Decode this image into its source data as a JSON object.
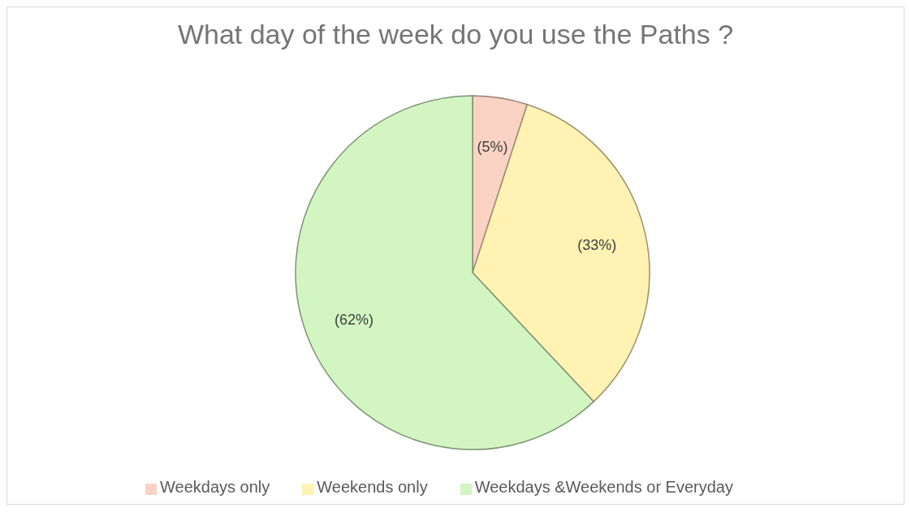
{
  "chart_data": {
    "type": "pie",
    "title": "What day of the week do you use the Paths ?",
    "categories": [
      "Weekdays only",
      "Weekends only",
      "Weekdays &Weekends or Everyday"
    ],
    "values": [
      5,
      33,
      62
    ],
    "colors": [
      "#fad3c4",
      "#fff2b3",
      "#d2f5c2"
    ],
    "value_labels": [
      "(5%)",
      "(33%)",
      "(62%)"
    ],
    "legend": "bottom"
  }
}
